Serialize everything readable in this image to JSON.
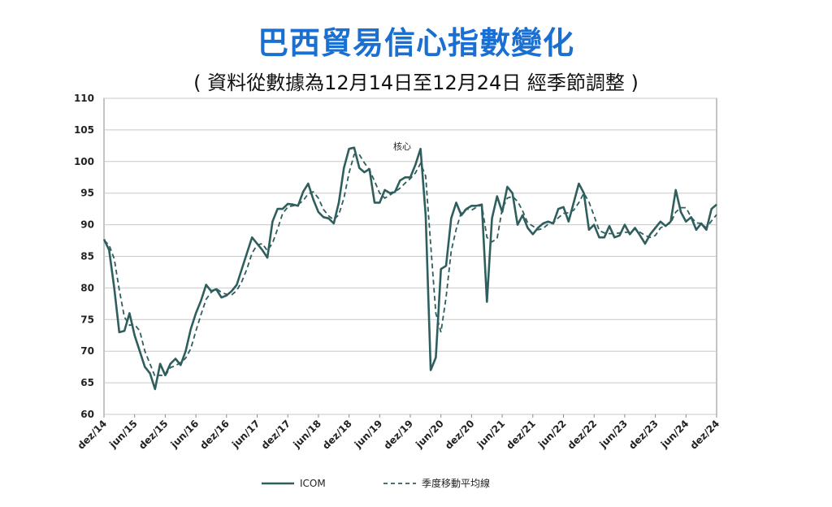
{
  "header": {
    "title": "巴西貿易信心指數變化",
    "subtitle": "( 資料從數據為12月14日至12月24日 經季節調整 )"
  },
  "colors": {
    "title": "#1a6fd0",
    "series": "#2e5e5e",
    "grid": "#c8c8c8",
    "frame": "#8a8a8a"
  },
  "chart_data": {
    "type": "line",
    "ylim": [
      60,
      110
    ],
    "yticks": [
      "60",
      "65",
      "70",
      "75",
      "80",
      "85",
      "90",
      "95",
      "100",
      "105",
      "110"
    ],
    "xtick_labels": [
      "dez/14",
      "jun/15",
      "dez/15",
      "jun/16",
      "dez/16",
      "jun/17",
      "dez/17",
      "jun/18",
      "dez/18",
      "jun/19",
      "dez/19",
      "jun/20",
      "dez/20",
      "jun/21",
      "dez/21",
      "jun/22",
      "dez/22",
      "jun/23",
      "dez/23",
      "jun/24",
      "dez/24"
    ],
    "grid": true,
    "legend_position": "bottom",
    "annotation": "核心",
    "series": [
      {
        "name": "ICOM",
        "style": "solid",
        "values": [
          87.7,
          86.0,
          80.0,
          73.0,
          73.2,
          76.0,
          72.5,
          70.0,
          67.5,
          66.5,
          64.0,
          68.0,
          66.2,
          68.0,
          68.8,
          67.8,
          70.0,
          73.5,
          76.0,
          78.0,
          80.5,
          79.5,
          79.8,
          78.5,
          78.8,
          79.5,
          80.5,
          83.0,
          85.5,
          88.0,
          87.0,
          86.0,
          84.8,
          90.5,
          92.5,
          92.5,
          93.3,
          93.2,
          93.0,
          95.2,
          96.5,
          94.0,
          92.0,
          91.2,
          91.0,
          90.2,
          93.5,
          99.0,
          102.0,
          102.2,
          99.0,
          98.3,
          98.8,
          93.5,
          93.5,
          95.5,
          95.0,
          95.2,
          97.0,
          97.5,
          97.5,
          99.5,
          102.0,
          91.5,
          67.0,
          69.0,
          83.0,
          83.5,
          91.0,
          93.5,
          91.5,
          92.5,
          93.0,
          93.0,
          93.2,
          77.8,
          91.0,
          94.5,
          92.0,
          96.0,
          95.0,
          90.0,
          91.5,
          89.5,
          88.5,
          89.5,
          90.2,
          90.5,
          90.2,
          92.5,
          92.8,
          90.5,
          93.5,
          96.5,
          95.0,
          89.2,
          90.0,
          88.0,
          88.0,
          89.8,
          88.0,
          88.3,
          90.0,
          88.5,
          89.5,
          88.3,
          87.0,
          88.5,
          89.5,
          90.5,
          89.8,
          90.5,
          95.5,
          92.0,
          90.5,
          91.2,
          89.2,
          90.2,
          89.2,
          92.5,
          93.2
        ]
      },
      {
        "name": "季度移動平均線",
        "style": "dashed",
        "values": [
          87.5,
          86.8,
          84.6,
          79.7,
          75.4,
          74.1,
          74.2,
          73.2,
          70.0,
          68.0,
          66.0,
          66.2,
          66.1,
          67.4,
          67.7,
          68.2,
          68.9,
          70.4,
          73.2,
          75.8,
          78.2,
          79.3,
          79.9,
          79.3,
          79.0,
          78.9,
          79.6,
          81.0,
          83.0,
          85.5,
          86.8,
          87.0,
          85.9,
          87.1,
          89.3,
          91.8,
          92.8,
          93.0,
          93.2,
          93.8,
          94.9,
          95.2,
          94.2,
          92.4,
          91.4,
          90.8,
          91.6,
          94.2,
          98.2,
          101.1,
          101.1,
          99.8,
          98.7,
          96.9,
          95.0,
          94.2,
          94.7,
          95.2,
          95.8,
          96.6,
          97.3,
          98.2,
          99.7,
          97.7,
          86.8,
          76.0,
          73.0,
          78.5,
          85.8,
          89.3,
          92.0,
          92.5,
          92.3,
          92.8,
          93.1,
          88.0,
          87.3,
          87.8,
          92.5,
          94.2,
          94.5,
          93.7,
          92.2,
          90.3,
          89.8,
          89.2,
          89.4,
          90.1,
          90.3,
          91.1,
          91.8,
          91.9,
          92.3,
          93.5,
          95.0,
          93.6,
          91.4,
          89.1,
          88.7,
          88.6,
          88.6,
          88.7,
          88.8,
          88.8,
          89.3,
          88.8,
          88.3,
          88.0,
          88.3,
          89.5,
          89.9,
          90.3,
          92.0,
          92.7,
          92.7,
          91.2,
          90.3,
          90.2,
          89.5,
          90.6,
          91.6
        ]
      }
    ]
  }
}
